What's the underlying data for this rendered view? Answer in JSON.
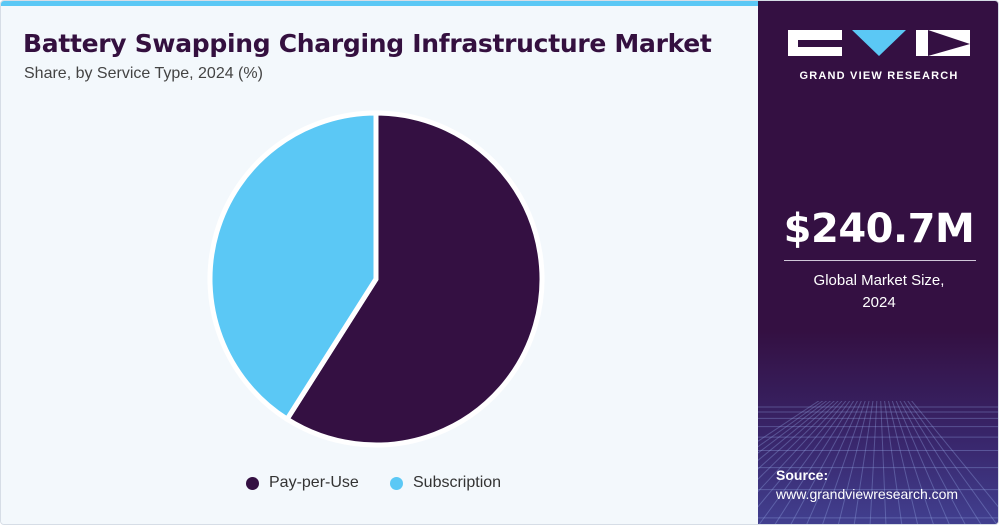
{
  "header": {
    "title": "Battery Swapping Charging Infrastructure Market",
    "subtitle": "Share, by Service Type, 2024 (%)"
  },
  "chart_data": {
    "type": "pie",
    "categories": [
      "Pay-per-Use",
      "Subscription"
    ],
    "values": [
      59,
      41
    ],
    "colors": [
      "#341042",
      "#5bc8f5"
    ],
    "start": "12 o'clock",
    "direction": "clockwise",
    "legend_position": "bottom",
    "legend": [
      "Pay-per-Use",
      "Subscription"
    ]
  },
  "sidebar": {
    "brand": "GRAND VIEW RESEARCH",
    "market_size": "$240.7M",
    "market_label_line1": "Global Market Size,",
    "market_label_line2": "2024",
    "source_label": "Source:",
    "source_url": "www.grandviewresearch.com"
  },
  "icons": {
    "logo": "grand-view-research-logo"
  },
  "colors": {
    "panel": "#341042",
    "accent": "#5bc8f5",
    "title": "#34103f",
    "background": "#f3f8fc"
  }
}
